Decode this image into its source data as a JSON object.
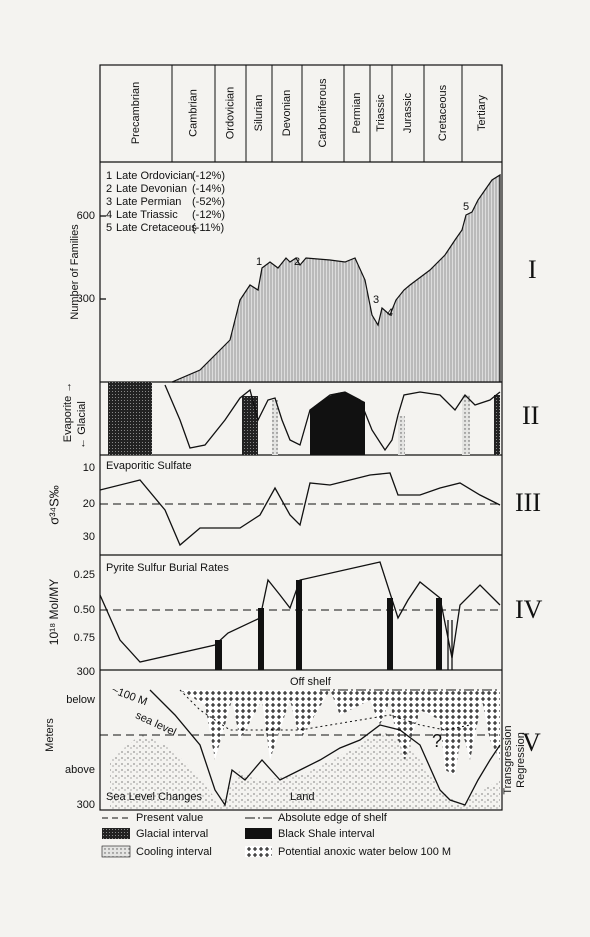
{
  "periods": [
    "Precambrian",
    "Cambrian",
    "Ordovician",
    "Silurian",
    "Devonian",
    "Carboniferous",
    "Permian",
    "Triassic",
    "Jurassic",
    "Cretaceous",
    "Tertiary"
  ],
  "panel_1": {
    "numeral": "I",
    "y_label": "Number of Families",
    "ticks": [
      "600",
      "300"
    ],
    "extinctions": [
      {
        "number": "1",
        "name": "Late Ordovician",
        "loss": "(-12%)"
      },
      {
        "number": "2",
        "name": "Late Devonian",
        "loss": "(-14%)"
      },
      {
        "number": "3",
        "name": "Late Permian",
        "loss": "(-52%)"
      },
      {
        "number": "4",
        "name": "Late Triassic",
        "loss": "(-12%)"
      },
      {
        "number": "5",
        "name": "Late Cretaceous",
        "loss": "(-11%)"
      }
    ]
  },
  "panel_2": {
    "numeral": "II",
    "label_up": "Evaporite →",
    "label_down": "← Glacial"
  },
  "panel_3": {
    "numeral": "III",
    "title": "Evaporitic Sulfate",
    "y_label": "σ³⁴S‰",
    "ticks": [
      "10",
      "20",
      "30"
    ]
  },
  "panel_4": {
    "numeral": "IV",
    "title": "Pyrite Sulfur Burial Rates",
    "y_label": "10¹⁸ Mol/MY",
    "ticks": [
      "0.25",
      "0.50",
      "0.75"
    ]
  },
  "panel_5": {
    "numeral": "V",
    "ticks": [
      "300",
      "300"
    ],
    "y_label": "Meters",
    "below": "below",
    "above": "above",
    "off_shelf": "Off shelf",
    "depth": "~100 M",
    "sea_level": "sea level",
    "title": "Sea Level Changes",
    "land": "Land",
    "question": "?",
    "transgression": "Transgression",
    "regression": "Regression"
  },
  "legend": {
    "present": "Present value",
    "shelf": "Absolute edge of shelf",
    "glacial": "Glacial interval",
    "shale": "Black Shale interval",
    "cooling": "Cooling interval",
    "anoxic": "Potential anoxic water below 100 M"
  }
}
